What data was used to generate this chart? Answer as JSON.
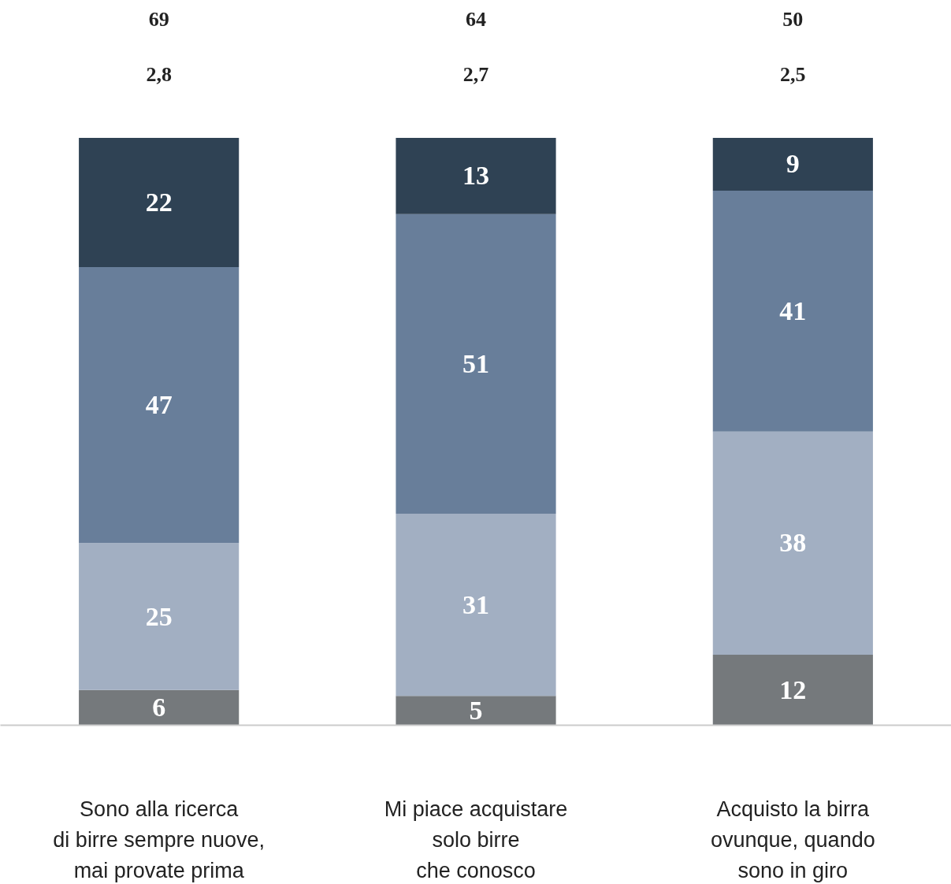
{
  "chart_data": {
    "type": "bar",
    "stacked": true,
    "data_labels": true,
    "grid": false,
    "tick_labels": "x",
    "categories": [
      "Sono alla ricerca\ndi birre sempre nuove,\nmai provate prima",
      "Mi piace acquistare\nsolo birre\nche conosco",
      "Acquisto la birra\novunque, quando\nsono in giro"
    ],
    "series": [
      {
        "color": "#75797c",
        "values": [
          6,
          5,
          12
        ]
      },
      {
        "color": "#a2afc2",
        "values": [
          25,
          31,
          38
        ]
      },
      {
        "color": "#687e9a",
        "values": [
          47,
          51,
          41
        ]
      },
      {
        "color": "#2f4254",
        "values": [
          22,
          13,
          9
        ]
      }
    ],
    "annotations": [
      "69",
      "64",
      "50",
      "2,8",
      "2,7",
      "2,5"
    ]
  }
}
